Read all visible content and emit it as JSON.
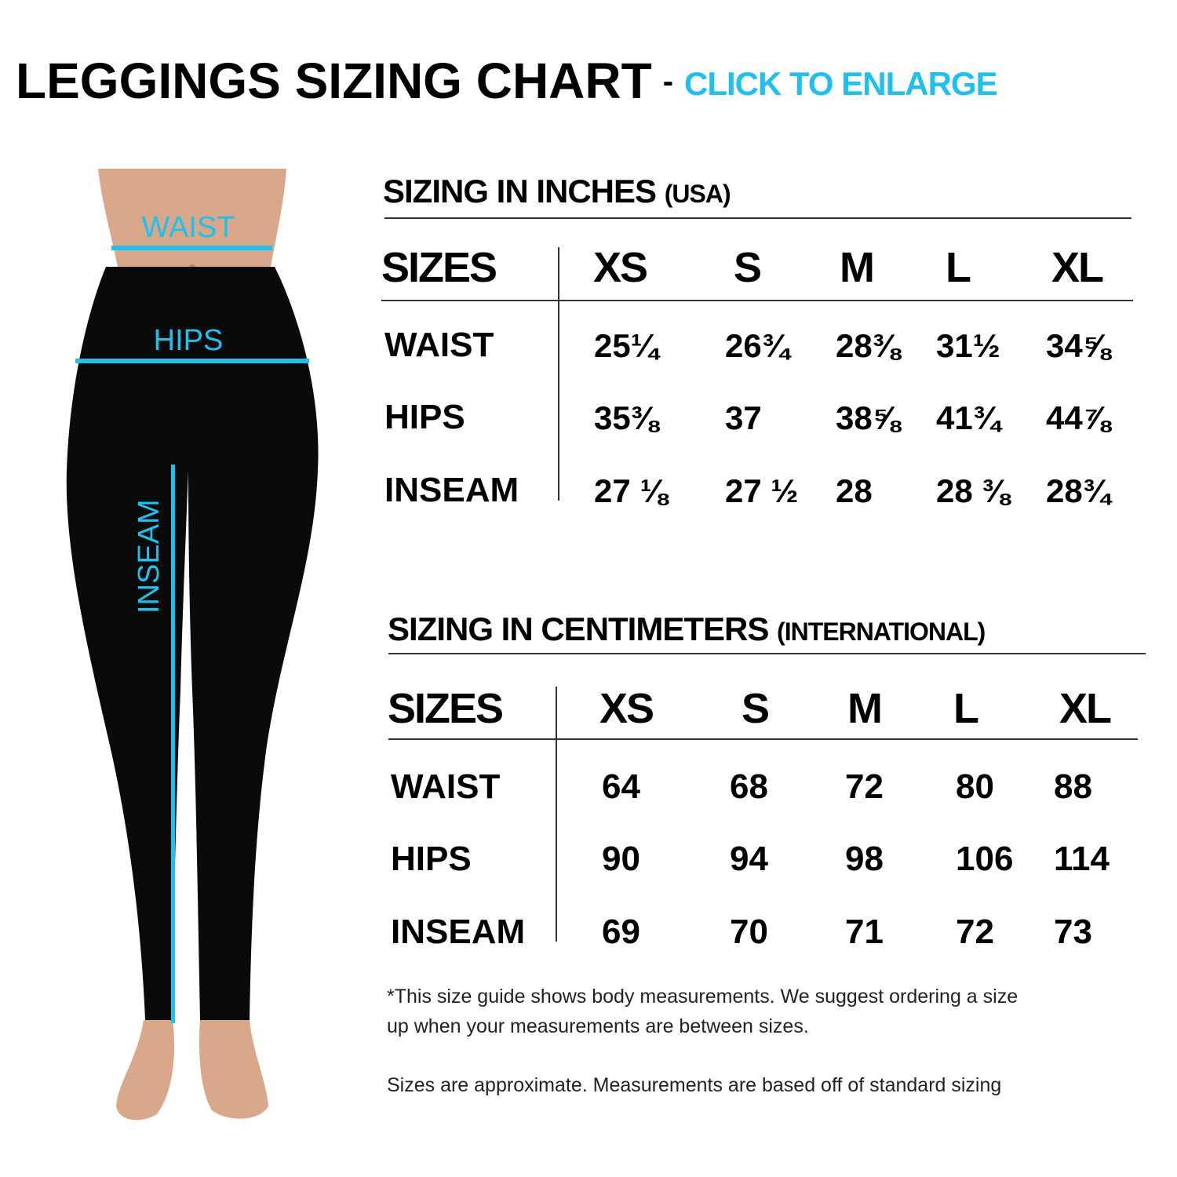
{
  "header": {
    "title": "LEGGINGS SIZING CHART",
    "separator": "-",
    "link": "CLICK TO ENLARGE"
  },
  "figure": {
    "labels": {
      "waist": "WAIST",
      "hips": "HIPS",
      "inseam": "INSEAM"
    },
    "accent_color": "#1fc0ee"
  },
  "inches": {
    "title": "SIZING IN INCHES",
    "subtitle": "(USA)",
    "sizes_label": "SIZES",
    "sizes": [
      "XS",
      "S",
      "M",
      "L",
      "XL"
    ],
    "rows": [
      {
        "label": "WAIST",
        "values": [
          "25¼",
          "26¾",
          "28⅜",
          "31½",
          "34⅝"
        ]
      },
      {
        "label": "HIPS",
        "values": [
          "35⅜",
          "37",
          "38⅝",
          "41¾",
          "44⅞"
        ]
      },
      {
        "label": "INSEAM",
        "values": [
          "27 ⅛",
          "27 ½",
          "28",
          "28 ⅜",
          "28¾"
        ]
      }
    ]
  },
  "centimeters": {
    "title": "SIZING IN CENTIMETERS",
    "subtitle": "(INTERNATIONAL)",
    "sizes_label": "SIZES",
    "sizes": [
      "XS",
      "S",
      "M",
      "L",
      "XL"
    ],
    "rows": [
      {
        "label": "WAIST",
        "values": [
          "64",
          "68",
          "72",
          "80",
          "88"
        ]
      },
      {
        "label": "HIPS",
        "values": [
          "90",
          "94",
          "98",
          "106",
          "114"
        ]
      },
      {
        "label": "INSEAM",
        "values": [
          "69",
          "70",
          "71",
          "72",
          "73"
        ]
      }
    ]
  },
  "notes": {
    "line1": "*This size guide shows body measurements. We suggest ordering a size",
    "line2": "up when your measurements are between sizes.",
    "line3": "Sizes are approximate. Measurements are based off of standard sizing"
  }
}
